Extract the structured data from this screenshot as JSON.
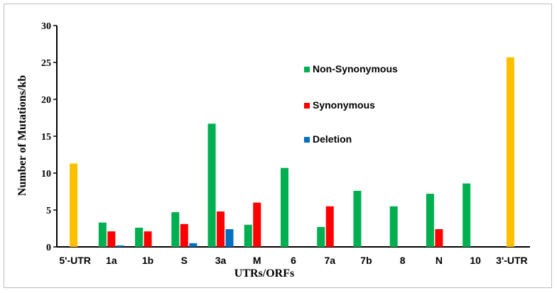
{
  "chart_data": {
    "type": "bar",
    "xlabel": "UTRs/ORFs",
    "ylabel": "Number of Mutations/kb",
    "ylim": [
      0,
      30
    ],
    "yticks": [
      0,
      5,
      10,
      15,
      20,
      25,
      30
    ],
    "grid": false,
    "legend_position": "center-right",
    "categories": [
      "5'-UTR",
      "1a",
      "1b",
      "S",
      "3a",
      "M",
      "6",
      "7a",
      "7b",
      "8",
      "N",
      "10",
      "3'-UTR"
    ],
    "series": [
      {
        "name": "",
        "color": "#ffc000",
        "values": [
          11.3,
          null,
          null,
          null,
          null,
          null,
          null,
          null,
          null,
          null,
          null,
          null,
          25.7
        ]
      },
      {
        "name": "Non-Synonymous",
        "color": "#00b050",
        "values": [
          null,
          3.3,
          2.6,
          4.7,
          16.7,
          3.0,
          10.7,
          2.7,
          7.6,
          5.5,
          7.2,
          8.6,
          null
        ]
      },
      {
        "name": "Synonymous",
        "color": "#ff0000",
        "values": [
          null,
          2.1,
          2.1,
          3.1,
          4.8,
          6.0,
          null,
          5.5,
          null,
          null,
          2.4,
          null,
          null
        ]
      },
      {
        "name": "Deletion",
        "color": "#0070c0",
        "values": [
          null,
          0.2,
          null,
          0.5,
          2.4,
          null,
          null,
          null,
          null,
          null,
          null,
          null,
          null
        ]
      }
    ]
  }
}
